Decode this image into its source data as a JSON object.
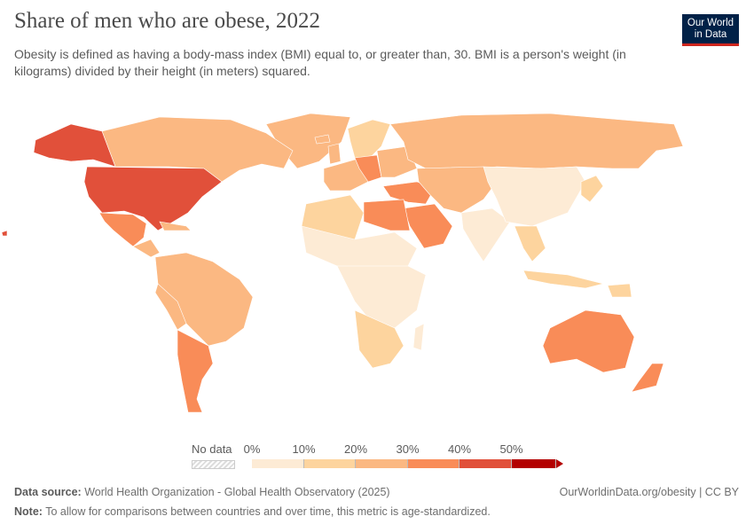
{
  "header": {
    "title": "Share of men who are obese, 2022",
    "subtitle": "Obesity is defined as having a body-mass index (BMI) equal to, or greater than, 30. BMI is a person's weight (in kilograms) divided by their height (in meters) squared.",
    "logo_line1": "Our World",
    "logo_line2": "in Data"
  },
  "legend": {
    "no_data_label": "No data",
    "ticks": [
      "0%",
      "10%",
      "20%",
      "30%",
      "40%",
      "50%"
    ],
    "bins": [
      {
        "range": "0–10%",
        "color": "#fdebd5"
      },
      {
        "range": "10–20%",
        "color": "#fdd49e"
      },
      {
        "range": "20–30%",
        "color": "#fbb882"
      },
      {
        "range": "30–40%",
        "color": "#f98c58"
      },
      {
        "range": "40–50%",
        "color": "#e1503a"
      },
      {
        "range": ">50%",
        "color": "#b30000"
      }
    ]
  },
  "footer": {
    "source_label": "Data source:",
    "source_text": "World Health Organization - Global Health Observatory (2025)",
    "url": "OurWorldinData.org/obesity | CC BY",
    "note_label": "Note:",
    "note_text": "To allow for comparisons between countries and over time, this metric is age-standardized."
  }
}
